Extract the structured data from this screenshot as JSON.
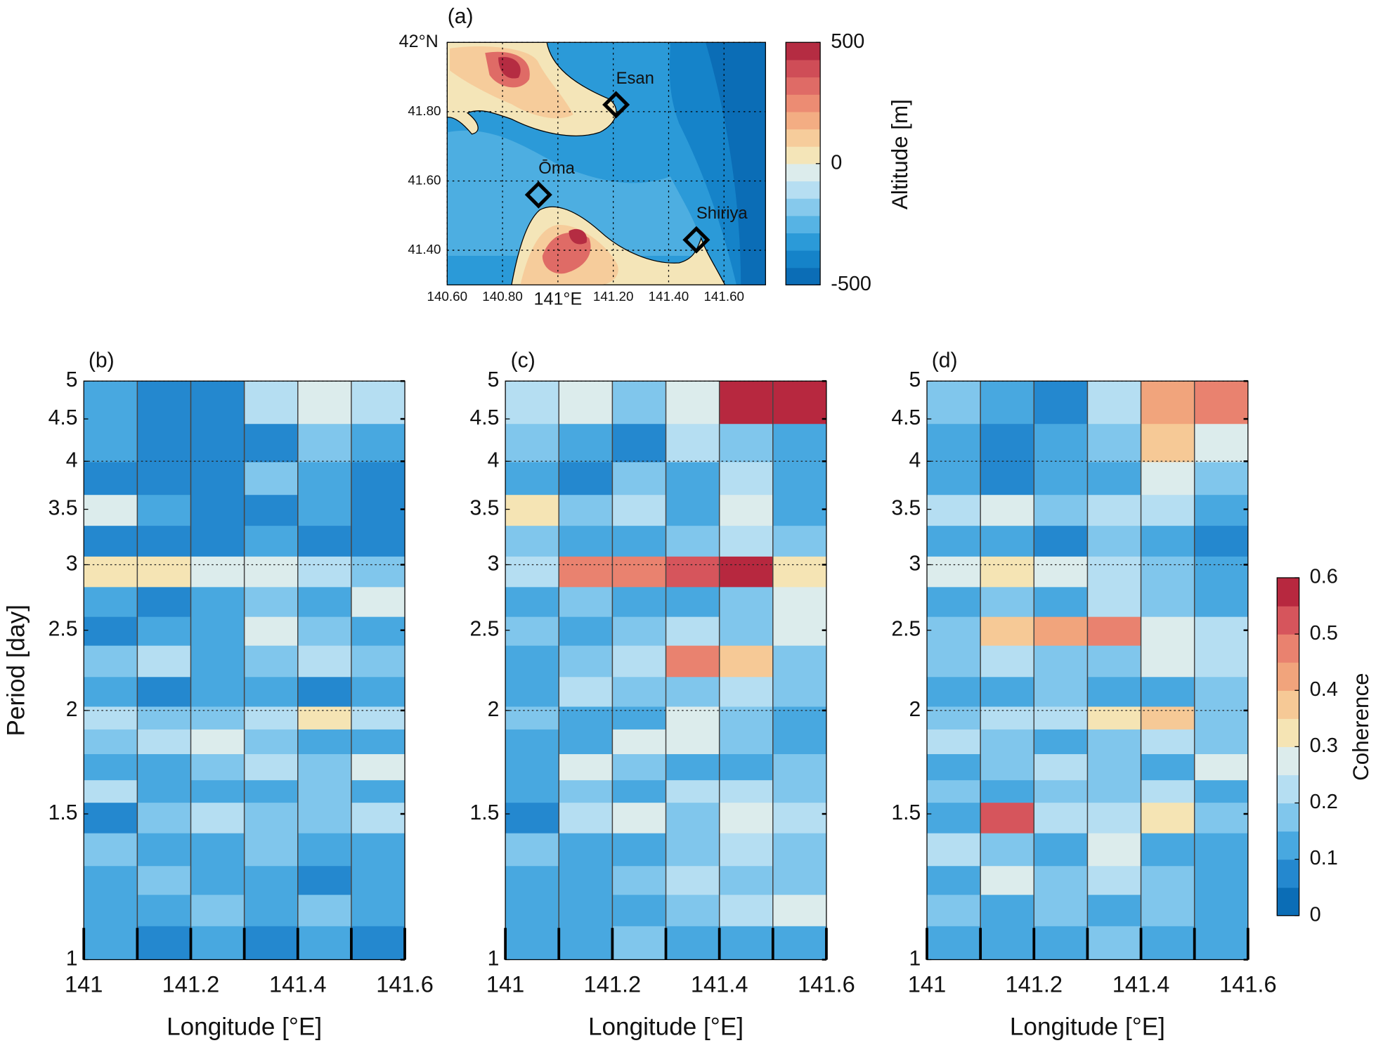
{
  "chart_data": [
    {
      "type": "map",
      "panel_label": "(a)",
      "xlim": [
        140.6,
        141.75
      ],
      "ylim": [
        41.3,
        42.0
      ],
      "xticks": [
        {
          "value": 140.6,
          "label": "140.60"
        },
        {
          "value": 140.8,
          "label": "140.80"
        },
        {
          "value": 141.0,
          "label": "141°E"
        },
        {
          "value": 141.2,
          "label": "141.20"
        },
        {
          "value": 141.4,
          "label": "141.40"
        },
        {
          "value": 141.6,
          "label": "141.60"
        }
      ],
      "yticks": [
        {
          "value": 42.0,
          "label": "42°N"
        },
        {
          "value": 41.8,
          "label": "41.80"
        },
        {
          "value": 41.6,
          "label": "41.60"
        },
        {
          "value": 41.4,
          "label": "41.40"
        }
      ],
      "stations": [
        {
          "name": "Esan",
          "lon": 141.21,
          "lat": 41.82
        },
        {
          "name": "Ōma",
          "lon": 140.93,
          "lat": 41.56
        },
        {
          "name": "Shiriya",
          "lon": 141.5,
          "lat": 41.43
        }
      ],
      "colorbar": {
        "label": "Altitude [m]",
        "lim": [
          -500,
          500
        ],
        "ticks": [
          500,
          0,
          -500
        ],
        "colors": [
          "#0b6db6",
          "#1583c9",
          "#2b9ad8",
          "#56b3e4",
          "#86c9ec",
          "#b6def2",
          "#dcecec",
          "#f4e5b8",
          "#f6cc9b",
          "#f3ad83",
          "#ec8c73",
          "#df6b66",
          "#cf4d57",
          "#b52c42"
        ]
      }
    },
    {
      "type": "heatmap",
      "panel_label": "(b)",
      "ylabel": "Period [day]",
      "xlabel": "Longitude [°E]",
      "xlim": [
        141,
        141.6
      ],
      "ylim": [
        1,
        5
      ],
      "log_y": true,
      "xticks": [
        141,
        141.2,
        141.4,
        141.6
      ],
      "xminor": [
        141,
        141.1,
        141.2,
        141.3,
        141.4,
        141.5,
        141.6
      ],
      "vlines": [
        141.1,
        141.2,
        141.3,
        141.4,
        141.5
      ],
      "yticks": [
        1,
        1.5,
        2,
        2.5,
        3,
        3.5,
        4,
        4.5,
        5
      ],
      "ygrid": [
        2,
        3,
        4,
        5
      ],
      "x": [
        141.05,
        141.15,
        141.25,
        141.35,
        141.45,
        141.55
      ],
      "y": [
        1.05,
        1.15,
        1.25,
        1.35,
        1.5,
        1.6,
        1.7,
        1.85,
        1.95,
        2.1,
        2.3,
        2.5,
        2.7,
        2.95,
        3.2,
        3.5,
        3.8,
        4.2,
        4.7
      ],
      "z": [
        [
          0.1,
          0.08,
          0.1,
          0.08,
          0.1,
          0.08
        ],
        [
          0.12,
          0.1,
          0.15,
          0.12,
          0.15,
          0.1
        ],
        [
          0.1,
          0.15,
          0.1,
          0.12,
          0.08,
          0.12
        ],
        [
          0.15,
          0.12,
          0.1,
          0.15,
          0.12,
          0.1
        ],
        [
          0.08,
          0.15,
          0.2,
          0.15,
          0.18,
          0.22
        ],
        [
          0.2,
          0.1,
          0.12,
          0.1,
          0.15,
          0.12
        ],
        [
          0.1,
          0.12,
          0.15,
          0.2,
          0.15,
          0.25
        ],
        [
          0.15,
          0.2,
          0.25,
          0.15,
          0.1,
          0.12
        ],
        [
          0.2,
          0.18,
          0.15,
          0.22,
          0.3,
          0.2
        ],
        [
          0.1,
          0.08,
          0.12,
          0.1,
          0.08,
          0.1
        ],
        [
          0.15,
          0.2,
          0.12,
          0.15,
          0.2,
          0.15
        ],
        [
          0.08,
          0.1,
          0.12,
          0.25,
          0.15,
          0.1
        ],
        [
          0.1,
          0.08,
          0.1,
          0.15,
          0.1,
          0.25
        ],
        [
          0.3,
          0.3,
          0.28,
          0.25,
          0.22,
          0.15
        ],
        [
          0.05,
          0.08,
          0.05,
          0.1,
          0.08,
          0.05
        ],
        [
          0.28,
          0.1,
          0.05,
          0.08,
          0.1,
          0.05
        ],
        [
          0.05,
          0.05,
          0.08,
          0.15,
          0.1,
          0.05
        ],
        [
          0.1,
          0.05,
          0.08,
          0.05,
          0.15,
          0.1
        ],
        [
          0.12,
          0.08,
          0.05,
          0.2,
          0.28,
          0.22
        ]
      ]
    },
    {
      "type": "heatmap",
      "panel_label": "(c)",
      "xlabel": "Longitude [°E]",
      "xlim": [
        141,
        141.6
      ],
      "ylim": [
        1,
        5
      ],
      "log_y": true,
      "xticks": [
        141,
        141.2,
        141.4,
        141.6
      ],
      "xminor": [
        141,
        141.1,
        141.2,
        141.3,
        141.4,
        141.5,
        141.6
      ],
      "vlines": [
        141.1,
        141.2,
        141.3,
        141.4,
        141.5
      ],
      "yticks": [
        1,
        1.5,
        2,
        2.5,
        3,
        3.5,
        4,
        4.5,
        5
      ],
      "ygrid": [
        2,
        3,
        4,
        5
      ],
      "x": [
        141.05,
        141.15,
        141.25,
        141.35,
        141.45,
        141.55
      ],
      "y": [
        1.05,
        1.15,
        1.25,
        1.35,
        1.5,
        1.6,
        1.7,
        1.85,
        1.95,
        2.1,
        2.3,
        2.5,
        2.7,
        2.95,
        3.2,
        3.5,
        3.8,
        4.2,
        4.7
      ],
      "z": [
        [
          0.12,
          0.1,
          0.15,
          0.12,
          0.1,
          0.12
        ],
        [
          0.1,
          0.12,
          0.1,
          0.15,
          0.2,
          0.25
        ],
        [
          0.12,
          0.1,
          0.15,
          0.22,
          0.18,
          0.15
        ],
        [
          0.15,
          0.12,
          0.1,
          0.15,
          0.2,
          0.15
        ],
        [
          0.08,
          0.2,
          0.25,
          0.15,
          0.25,
          0.2
        ],
        [
          0.1,
          0.15,
          0.12,
          0.2,
          0.22,
          0.15
        ],
        [
          0.12,
          0.28,
          0.15,
          0.12,
          0.1,
          0.15
        ],
        [
          0.1,
          0.12,
          0.25,
          0.28,
          0.15,
          0.1
        ],
        [
          0.15,
          0.12,
          0.1,
          0.25,
          0.15,
          0.12
        ],
        [
          0.1,
          0.2,
          0.18,
          0.15,
          0.22,
          0.15
        ],
        [
          0.12,
          0.15,
          0.2,
          0.45,
          0.35,
          0.15
        ],
        [
          0.15,
          0.12,
          0.18,
          0.2,
          0.15,
          0.25
        ],
        [
          0.1,
          0.15,
          0.12,
          0.1,
          0.15,
          0.28
        ],
        [
          0.2,
          0.45,
          0.45,
          0.5,
          0.55,
          0.3
        ],
        [
          0.15,
          0.1,
          0.12,
          0.18,
          0.2,
          0.15
        ],
        [
          0.3,
          0.15,
          0.2,
          0.12,
          0.25,
          0.1
        ],
        [
          0.1,
          0.08,
          0.15,
          0.1,
          0.2,
          0.12
        ],
        [
          0.15,
          0.1,
          0.05,
          0.2,
          0.15,
          0.12
        ],
        [
          0.2,
          0.25,
          0.15,
          0.25,
          0.6,
          0.55
        ]
      ]
    },
    {
      "type": "heatmap",
      "panel_label": "(d)",
      "xlabel": "Longitude [°E]",
      "xlim": [
        141,
        141.6
      ],
      "ylim": [
        1,
        5
      ],
      "log_y": true,
      "xticks": [
        141,
        141.2,
        141.4,
        141.6
      ],
      "xminor": [
        141,
        141.1,
        141.2,
        141.3,
        141.4,
        141.5,
        141.6
      ],
      "vlines": [
        141.1,
        141.2,
        141.3,
        141.4,
        141.5
      ],
      "yticks": [
        1,
        1.5,
        2,
        2.5,
        3,
        3.5,
        4,
        4.5,
        5
      ],
      "ygrid": [
        2,
        3,
        4,
        5
      ],
      "x": [
        141.05,
        141.15,
        141.25,
        141.35,
        141.45,
        141.55
      ],
      "y": [
        1.05,
        1.15,
        1.25,
        1.35,
        1.5,
        1.6,
        1.7,
        1.85,
        1.95,
        2.1,
        2.3,
        2.5,
        2.7,
        2.95,
        3.2,
        3.5,
        3.8,
        4.2,
        4.7
      ],
      "z": [
        [
          0.1,
          0.12,
          0.1,
          0.15,
          0.12,
          0.1
        ],
        [
          0.15,
          0.1,
          0.18,
          0.12,
          0.15,
          0.1
        ],
        [
          0.12,
          0.25,
          0.15,
          0.2,
          0.15,
          0.12
        ],
        [
          0.2,
          0.15,
          0.1,
          0.28,
          0.12,
          0.1
        ],
        [
          0.1,
          0.5,
          0.2,
          0.22,
          0.3,
          0.15
        ],
        [
          0.15,
          0.1,
          0.18,
          0.15,
          0.2,
          0.12
        ],
        [
          0.12,
          0.15,
          0.2,
          0.15,
          0.1,
          0.25
        ],
        [
          0.2,
          0.15,
          0.12,
          0.18,
          0.22,
          0.15
        ],
        [
          0.15,
          0.2,
          0.22,
          0.3,
          0.35,
          0.15
        ],
        [
          0.1,
          0.12,
          0.15,
          0.12,
          0.1,
          0.15
        ],
        [
          0.15,
          0.2,
          0.18,
          0.15,
          0.25,
          0.2
        ],
        [
          0.15,
          0.35,
          0.4,
          0.45,
          0.25,
          0.2
        ],
        [
          0.12,
          0.15,
          0.1,
          0.2,
          0.15,
          0.12
        ],
        [
          0.28,
          0.3,
          0.25,
          0.2,
          0.15,
          0.12
        ],
        [
          0.1,
          0.12,
          0.08,
          0.15,
          0.1,
          0.08
        ],
        [
          0.2,
          0.25,
          0.15,
          0.22,
          0.2,
          0.1
        ],
        [
          0.1,
          0.08,
          0.12,
          0.1,
          0.25,
          0.15
        ],
        [
          0.12,
          0.08,
          0.1,
          0.15,
          0.35,
          0.25
        ],
        [
          0.15,
          0.1,
          0.08,
          0.2,
          0.4,
          0.45
        ]
      ],
      "colorbar": {
        "label": "Coherence",
        "lim": [
          0,
          0.6
        ],
        "ticks": [
          0,
          0.1,
          0.2,
          0.3,
          0.4,
          0.5,
          0.6
        ],
        "colors": [
          "#0b6db6",
          "#2488cf",
          "#48a8e0",
          "#80c6ec",
          "#b5def2",
          "#dcecec",
          "#f5e4b4",
          "#f6c996",
          "#f1a47c",
          "#e9826f",
          "#d6555c",
          "#b7283f"
        ]
      }
    }
  ]
}
